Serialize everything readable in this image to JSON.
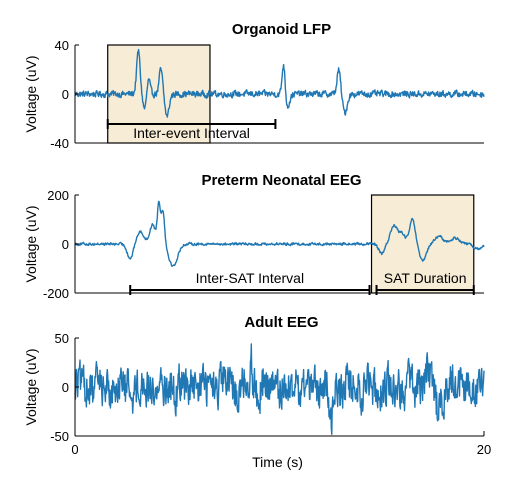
{
  "chart_data": [
    {
      "type": "line",
      "title": "Organoid LFP",
      "ylabel": "Voltage (uV)",
      "xlabel": "",
      "xlim": [
        0,
        20
      ],
      "ylim": [
        -40,
        40
      ],
      "yticks": [
        "40",
        "0",
        "-40"
      ],
      "highlight": {
        "x_range": [
          1.6,
          6.6
        ]
      },
      "annotations": [
        {
          "text": "Inter-event Interval",
          "x_range": [
            1.6,
            9.8
          ]
        }
      ],
      "series": [
        {
          "color": "#1f77b4",
          "events": [
            {
              "x": 3.1,
              "amp": 35,
              "w": 0.12
            },
            {
              "x": 3.4,
              "amp": -12,
              "w": 0.12
            },
            {
              "x": 3.6,
              "amp": 12,
              "w": 0.1
            },
            {
              "x": 4.2,
              "amp": 20,
              "w": 0.12
            },
            {
              "x": 4.5,
              "amp": -18,
              "w": 0.15
            },
            {
              "x": 10.2,
              "amp": 25,
              "w": 0.1
            },
            {
              "x": 10.4,
              "amp": -10,
              "w": 0.14
            },
            {
              "x": 12.9,
              "amp": 20,
              "w": 0.12
            },
            {
              "x": 13.2,
              "amp": -15,
              "w": 0.16
            }
          ],
          "noise_amp": 3
        }
      ]
    },
    {
      "type": "line",
      "title": "Preterm Neonatal EEG",
      "ylabel": "Voltage (uV)",
      "xlabel": "",
      "xlim": [
        0,
        20
      ],
      "ylim": [
        -200,
        200
      ],
      "yticks": [
        "200",
        "0",
        "-200"
      ],
      "highlight": {
        "x_range": [
          14.5,
          19.5
        ]
      },
      "annotations": [
        {
          "text": "Inter-SAT Interval",
          "x_range": [
            2.7,
            14.5
          ]
        },
        {
          "text": "SAT Duration",
          "x_range": [
            14.5,
            19.5
          ]
        }
      ],
      "series": [
        {
          "color": "#1f77b4",
          "events": [
            {
              "x": 2.7,
              "amp": -60,
              "w": 0.2
            },
            {
              "x": 3.2,
              "amp": 50,
              "w": 0.25
            },
            {
              "x": 3.8,
              "amp": 80,
              "w": 0.2
            },
            {
              "x": 4.1,
              "amp": 160,
              "w": 0.1
            },
            {
              "x": 4.3,
              "amp": 140,
              "w": 0.12
            },
            {
              "x": 4.8,
              "amp": -90,
              "w": 0.3
            },
            {
              "x": 15.0,
              "amp": -40,
              "w": 0.2
            },
            {
              "x": 15.6,
              "amp": 75,
              "w": 0.25
            },
            {
              "x": 16.0,
              "amp": 40,
              "w": 0.2
            },
            {
              "x": 16.5,
              "amp": 100,
              "w": 0.2
            },
            {
              "x": 17.0,
              "amp": -70,
              "w": 0.25
            },
            {
              "x": 17.8,
              "amp": 30,
              "w": 0.3
            },
            {
              "x": 18.6,
              "amp": 25,
              "w": 0.3
            },
            {
              "x": 19.7,
              "amp": -20,
              "w": 0.3
            }
          ],
          "noise_amp": 6
        }
      ]
    },
    {
      "type": "line",
      "title": "Adult EEG",
      "ylabel": "Voltage (uV)",
      "xlabel": "Time (s)",
      "xlim": [
        0,
        20
      ],
      "ylim": [
        -50,
        50
      ],
      "yticks": [
        "50",
        "0",
        "-50"
      ],
      "xticks": [
        "0",
        "20"
      ],
      "series": [
        {
          "color": "#1f77b4",
          "events": [
            {
              "x": 8.6,
              "amp": 35,
              "w": 0.08
            },
            {
              "x": 12.5,
              "amp": -30,
              "w": 0.15
            },
            {
              "x": 17.2,
              "amp": 18,
              "w": 0.15
            },
            {
              "x": 17.8,
              "amp": -22,
              "w": 0.2
            }
          ],
          "noise_amp": 22
        }
      ]
    }
  ]
}
